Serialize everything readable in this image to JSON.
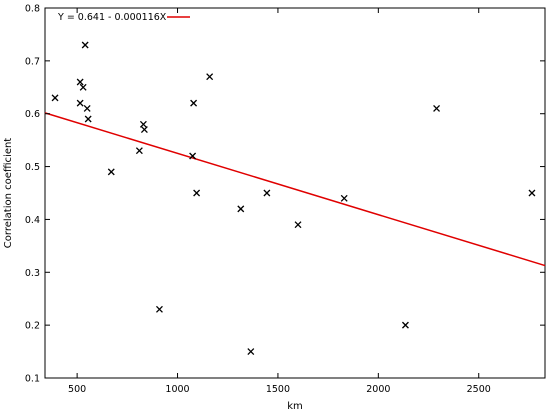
{
  "chart_data": {
    "type": "scatter",
    "title": "",
    "xlabel": "km",
    "ylabel": "Correlation coefficient",
    "xlim": [
      340,
      2830
    ],
    "ylim": [
      0.1,
      0.8
    ],
    "xticks": [
      500,
      1000,
      1500,
      2000,
      2500
    ],
    "yticks": [
      0.1,
      0.2,
      0.3,
      0.4,
      0.5,
      0.6,
      0.7,
      0.8
    ],
    "grid": false,
    "legend_position": "top-left",
    "marker_color": "#000000",
    "series": [
      {
        "marker": "x",
        "points": [
          {
            "x": 390,
            "y": 0.63
          },
          {
            "x": 515,
            "y": 0.66
          },
          {
            "x": 515,
            "y": 0.62
          },
          {
            "x": 530,
            "y": 0.65
          },
          {
            "x": 540,
            "y": 0.73
          },
          {
            "x": 550,
            "y": 0.61
          },
          {
            "x": 555,
            "y": 0.59
          },
          {
            "x": 670,
            "y": 0.49
          },
          {
            "x": 810,
            "y": 0.53
          },
          {
            "x": 830,
            "y": 0.58
          },
          {
            "x": 835,
            "y": 0.57
          },
          {
            "x": 910,
            "y": 0.23
          },
          {
            "x": 1075,
            "y": 0.52
          },
          {
            "x": 1080,
            "y": 0.62
          },
          {
            "x": 1095,
            "y": 0.45
          },
          {
            "x": 1160,
            "y": 0.67
          },
          {
            "x": 1315,
            "y": 0.42
          },
          {
            "x": 1365,
            "y": 0.15
          },
          {
            "x": 1445,
            "y": 0.45
          },
          {
            "x": 1600,
            "y": 0.39
          },
          {
            "x": 1830,
            "y": 0.44
          },
          {
            "x": 2135,
            "y": 0.2
          },
          {
            "x": 2290,
            "y": 0.61
          },
          {
            "x": 2765,
            "y": 0.45
          }
        ]
      }
    ],
    "fit_line": {
      "label": "Y = 0.641 - 0.000116X",
      "intercept": 0.641,
      "slope": -0.000116,
      "color": "#e00000"
    }
  }
}
